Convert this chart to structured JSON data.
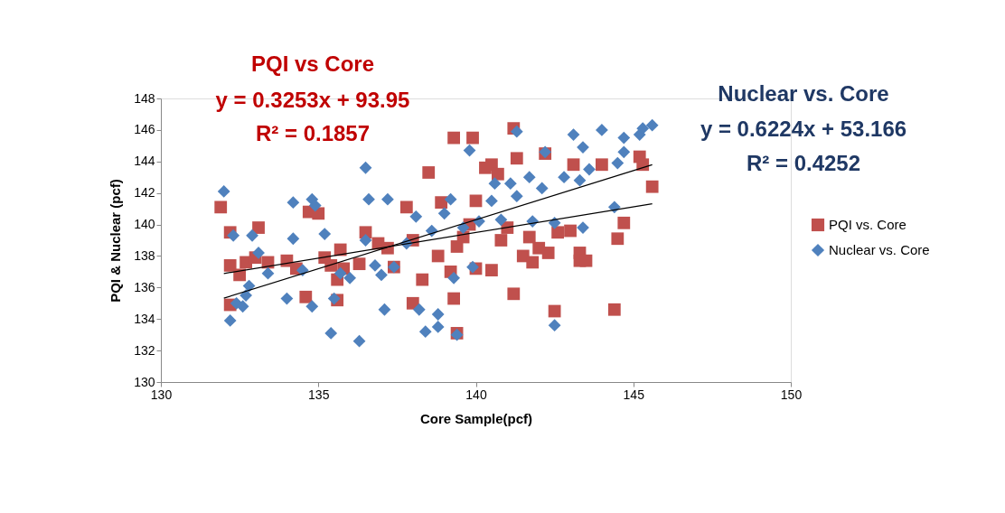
{
  "chart_data": {
    "type": "scatter",
    "xlabel": "Core Sample(pcf)",
    "ylabel": "PQI & Nuclear (pcf)",
    "xlim": [
      130,
      150
    ],
    "xticks": [
      130,
      135,
      140,
      145,
      150
    ],
    "ylim": [
      130,
      148
    ],
    "yticks": [
      130,
      132,
      134,
      136,
      138,
      140,
      142,
      144,
      146,
      148
    ],
    "grid": false,
    "legend": "right",
    "annotations": [
      "PQI vs Core",
      "y = 0.3253x + 93.95",
      "R² = 0.1857",
      "Nuclear vs. Core",
      "y = 0.6224x + 53.166",
      "R² = 0.4252"
    ],
    "series": [
      {
        "name": "PQI vs. Core",
        "color": "#c0504d",
        "marker": "square",
        "x": [
          131.9,
          132.2,
          132.2,
          132.2,
          132.5,
          132.7,
          133.0,
          133.1,
          133.4,
          134.0,
          134.3,
          134.6,
          134.7,
          135.0,
          135.2,
          135.4,
          135.6,
          135.6,
          135.7,
          135.8,
          136.3,
          136.5,
          136.9,
          137.2,
          137.4,
          137.8,
          138.0,
          138.0,
          138.3,
          138.5,
          138.8,
          138.9,
          139.2,
          139.3,
          139.3,
          139.4,
          139.4,
          139.6,
          139.9,
          140.0,
          140.0,
          140.3,
          140.5,
          140.5,
          140.7,
          140.8,
          141.2,
          141.2,
          141.3,
          141.5,
          141.7,
          141.8,
          142.0,
          142.2,
          142.3,
          142.5,
          142.6,
          143.0,
          143.1,
          143.3,
          143.3,
          143.5,
          144.0,
          144.4,
          144.5,
          144.7,
          145.2,
          145.3,
          145.6,
          141.0,
          139.8
        ],
        "values": [
          141.1,
          139.5,
          137.4,
          134.9,
          136.8,
          137.6,
          137.9,
          139.8,
          137.6,
          137.7,
          137.2,
          135.4,
          140.8,
          140.7,
          137.9,
          137.4,
          135.2,
          136.5,
          138.4,
          137.2,
          137.5,
          139.5,
          138.8,
          138.5,
          137.3,
          141.1,
          139.0,
          135.0,
          136.5,
          143.3,
          138.0,
          141.4,
          137.0,
          135.3,
          145.5,
          133.1,
          138.6,
          139.2,
          145.5,
          141.5,
          137.2,
          143.6,
          143.8,
          137.1,
          143.2,
          139.0,
          146.1,
          135.6,
          144.2,
          138.0,
          139.2,
          137.6,
          138.5,
          144.5,
          138.2,
          134.5,
          139.5,
          139.6,
          143.8,
          138.2,
          137.7,
          137.7,
          143.8,
          134.6,
          139.1,
          140.1,
          144.3,
          143.8,
          142.4,
          139.8,
          140.0
        ]
      },
      {
        "name": "Nuclear vs. Core",
        "color": "#4f81bd",
        "marker": "diamond",
        "x": [
          132.0,
          132.2,
          132.3,
          132.4,
          132.6,
          132.7,
          132.8,
          132.9,
          133.1,
          133.4,
          134.0,
          134.2,
          134.2,
          134.5,
          134.8,
          134.9,
          134.8,
          135.2,
          135.4,
          135.5,
          135.7,
          136.0,
          136.3,
          136.5,
          136.5,
          136.6,
          136.8,
          137.0,
          137.2,
          137.1,
          137.4,
          137.8,
          138.1,
          138.2,
          138.4,
          138.6,
          138.8,
          138.8,
          139.0,
          139.2,
          139.3,
          139.4,
          139.6,
          139.8,
          139.9,
          140.1,
          140.5,
          140.6,
          140.8,
          141.1,
          141.3,
          141.3,
          141.7,
          141.8,
          142.1,
          142.2,
          142.5,
          142.5,
          142.8,
          143.1,
          143.3,
          143.4,
          143.4,
          143.6,
          144.0,
          144.4,
          144.5,
          144.7,
          144.7,
          145.2,
          145.3,
          145.6
        ],
        "values": [
          142.1,
          133.9,
          139.3,
          135.0,
          134.8,
          135.5,
          136.1,
          139.3,
          138.2,
          136.9,
          135.3,
          141.4,
          139.1,
          137.1,
          141.6,
          141.2,
          134.8,
          139.4,
          133.1,
          135.3,
          136.9,
          136.6,
          132.6,
          143.6,
          139.0,
          141.6,
          137.4,
          136.8,
          141.6,
          134.6,
          137.3,
          138.8,
          140.5,
          134.6,
          133.2,
          139.6,
          134.3,
          133.5,
          140.7,
          141.6,
          136.6,
          133.0,
          139.8,
          144.7,
          137.3,
          140.2,
          141.5,
          142.6,
          140.3,
          142.6,
          145.9,
          141.8,
          143.0,
          140.2,
          142.3,
          144.6,
          133.6,
          140.1,
          143.0,
          145.7,
          142.8,
          139.8,
          144.9,
          143.5,
          146.0,
          141.1,
          143.9,
          144.6,
          145.5,
          145.7,
          146.1,
          146.3
        ]
      },
      {
        "type": "line",
        "color": "#000000",
        "x": [
          132.0,
          145.6
        ],
        "values": [
          136.89,
          141.31
        ]
      },
      {
        "type": "line",
        "color": "#000000",
        "x": [
          132.0,
          145.6
        ],
        "values": [
          135.32,
          143.79
        ]
      }
    ]
  }
}
